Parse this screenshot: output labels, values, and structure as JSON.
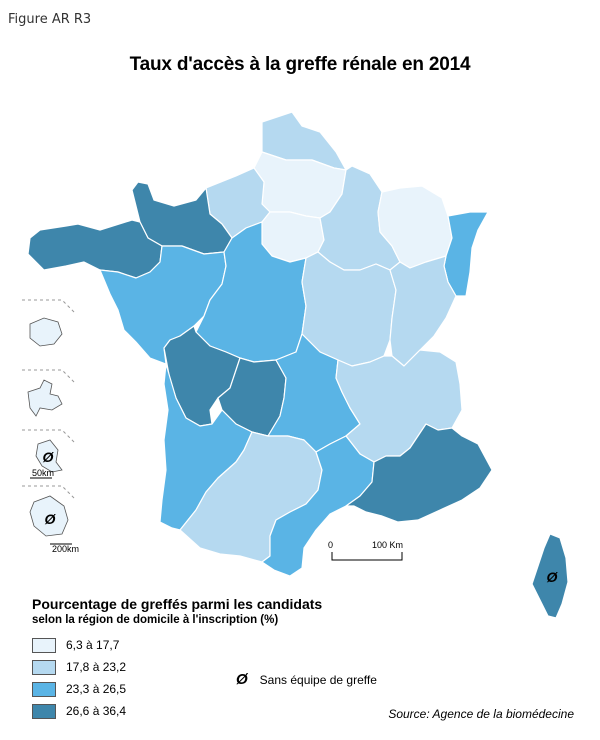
{
  "figure_label": "Figure AR R3",
  "title": "Taux d'accès à la greffe rénale en 2014",
  "legend": {
    "title": "Pourcentage de greffés parmi les candidats",
    "subtitle": "selon la région de domicile à l'inscription (%)",
    "classes": [
      {
        "label": "6,3 à 17,7",
        "color": "#e8f3fb"
      },
      {
        "label": "17,8 à 23,2",
        "color": "#b5d9f0"
      },
      {
        "label": "23,3 à 26,5",
        "color": "#5ab4e5"
      },
      {
        "label": "26,6 à 36,4",
        "color": "#3e86ab"
      }
    ],
    "no_team_symbol": "Ø",
    "no_team_label": "Sans équipe de greffe"
  },
  "scale_bar": {
    "start": "0",
    "end": "100 Km"
  },
  "inset_scales": [
    "50km",
    "200km"
  ],
  "source": "Source: Agence de la biomédecine",
  "map_data": {
    "regions": [
      {
        "id": "nord-pas-de-calais",
        "class": 2
      },
      {
        "id": "picardie",
        "class": 1
      },
      {
        "id": "haute-normandie",
        "class": 2
      },
      {
        "id": "basse-normandie",
        "class": 4
      },
      {
        "id": "bretagne",
        "class": 4
      },
      {
        "id": "ile-de-france",
        "class": 1
      },
      {
        "id": "champagne-ardenne",
        "class": 2
      },
      {
        "id": "lorraine",
        "class": 1
      },
      {
        "id": "alsace",
        "class": 3
      },
      {
        "id": "pays-de-la-loire",
        "class": 3
      },
      {
        "id": "centre",
        "class": 3
      },
      {
        "id": "bourgogne",
        "class": 2
      },
      {
        "id": "franche-comte",
        "class": 2
      },
      {
        "id": "poitou-charentes",
        "class": 4
      },
      {
        "id": "limousin",
        "class": 4
      },
      {
        "id": "auvergne",
        "class": 3
      },
      {
        "id": "rhone-alpes",
        "class": 2
      },
      {
        "id": "aquitaine",
        "class": 3
      },
      {
        "id": "midi-pyrenees",
        "class": 2
      },
      {
        "id": "languedoc-roussillon",
        "class": 3
      },
      {
        "id": "paca",
        "class": 4
      },
      {
        "id": "corse",
        "class": 4,
        "no_team": true
      },
      {
        "id": "reunion",
        "class": 1
      },
      {
        "id": "guadeloupe",
        "class": 1
      },
      {
        "id": "martinique",
        "class": 1,
        "no_team": true
      },
      {
        "id": "guyane",
        "class": 1,
        "no_team": true
      }
    ]
  }
}
